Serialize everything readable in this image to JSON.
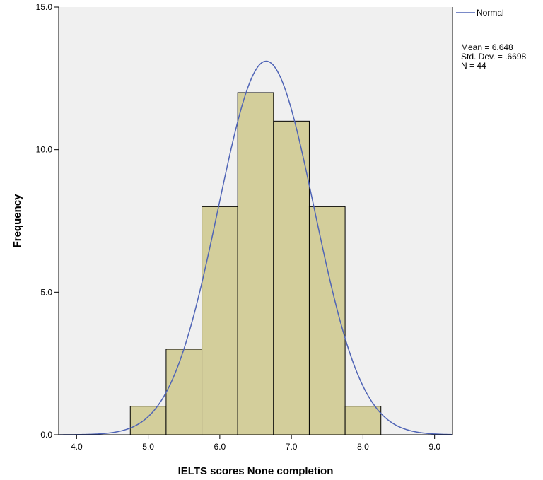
{
  "chart_data": {
    "type": "bar",
    "subtype": "histogram",
    "xlabel": "IELTS scores None completion",
    "ylabel": "Frequency",
    "xlim": [
      3.75,
      9.25
    ],
    "ylim": [
      0,
      15.0
    ],
    "x_ticks": [
      4.0,
      5.0,
      6.0,
      7.0,
      8.0,
      9.0
    ],
    "x_tick_labels": [
      "4.0",
      "5.0",
      "6.0",
      "7.0",
      "8.0",
      "9.0"
    ],
    "y_ticks": [
      0,
      5,
      10,
      15
    ],
    "y_tick_labels": [
      "0.0",
      "5.0",
      "10.0",
      "15.0"
    ],
    "bin_width": 0.5,
    "bins": [
      {
        "start": 4.75,
        "end": 5.25,
        "count": 1
      },
      {
        "start": 5.25,
        "end": 5.75,
        "count": 3
      },
      {
        "start": 5.75,
        "end": 6.25,
        "count": 8
      },
      {
        "start": 6.25,
        "end": 6.75,
        "count": 12
      },
      {
        "start": 6.75,
        "end": 7.25,
        "count": 11
      },
      {
        "start": 7.25,
        "end": 7.75,
        "count": 8
      },
      {
        "start": 7.75,
        "end": 8.25,
        "count": 1
      }
    ],
    "normal_curve": {
      "name": "Normal",
      "mean": 6.648,
      "sd": 0.6698,
      "n": 44
    },
    "legend": {
      "label": "Normal",
      "placement": "top-right, outside plot"
    },
    "stats_lines": [
      "Mean = 6.648",
      "Std. Dev. = .6698",
      "N = 44"
    ],
    "grid": false
  },
  "colors": {
    "plot_background": "#f0f0f0",
    "bar_fill": "#d3ce9b",
    "bar_stroke": "#000000",
    "curve": "#4f64b6",
    "axis": "#000000"
  }
}
